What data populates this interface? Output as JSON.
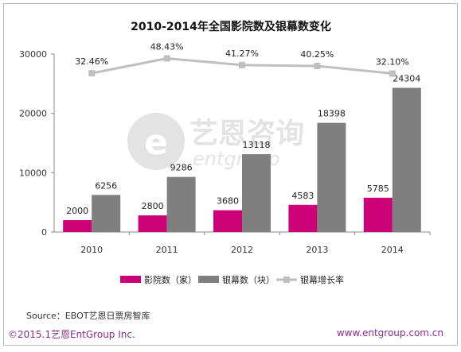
{
  "chart_data": {
    "type": "bar",
    "title": "2010-2014年全国影院数及银幕数变化",
    "categories": [
      "2010",
      "2011",
      "2012",
      "2013",
      "2014"
    ],
    "series": [
      {
        "name": "影院数（家）",
        "kind": "bar",
        "color": "#cc0077",
        "values": [
          2000,
          2800,
          3680,
          4583,
          5785
        ]
      },
      {
        "name": "银幕数（块）",
        "kind": "bar",
        "color": "#7f7f7f",
        "values": [
          6256,
          9286,
          13118,
          18398,
          24304
        ]
      },
      {
        "name": "银幕增长率",
        "kind": "line",
        "color": "#bfbfbf",
        "values": [
          32.46,
          48.43,
          41.27,
          40.25,
          32.1
        ],
        "labels": [
          "32.46%",
          "48.43%",
          "41.27%",
          "40.25%",
          "32.10%"
        ]
      }
    ],
    "y_ticks": [
      0,
      10000,
      20000,
      30000
    ],
    "ylim": [
      0,
      30000
    ],
    "grid": false,
    "legend_position": "bottom"
  },
  "watermark": {
    "logo_text_cn": "艺恩咨询",
    "logo_text_en": "entgroup"
  },
  "source_text": "Source：EBOT艺恩日票房智库",
  "footer": {
    "copyright": "©2015.1艺恩EntGroup Inc.",
    "url": "www.entgroup.com.cn"
  },
  "colors": {
    "accent_purple": "#8f2a8f",
    "bar_magenta": "#cc0077",
    "bar_gray": "#7f7f7f",
    "line_gray": "#bfbfbf"
  }
}
